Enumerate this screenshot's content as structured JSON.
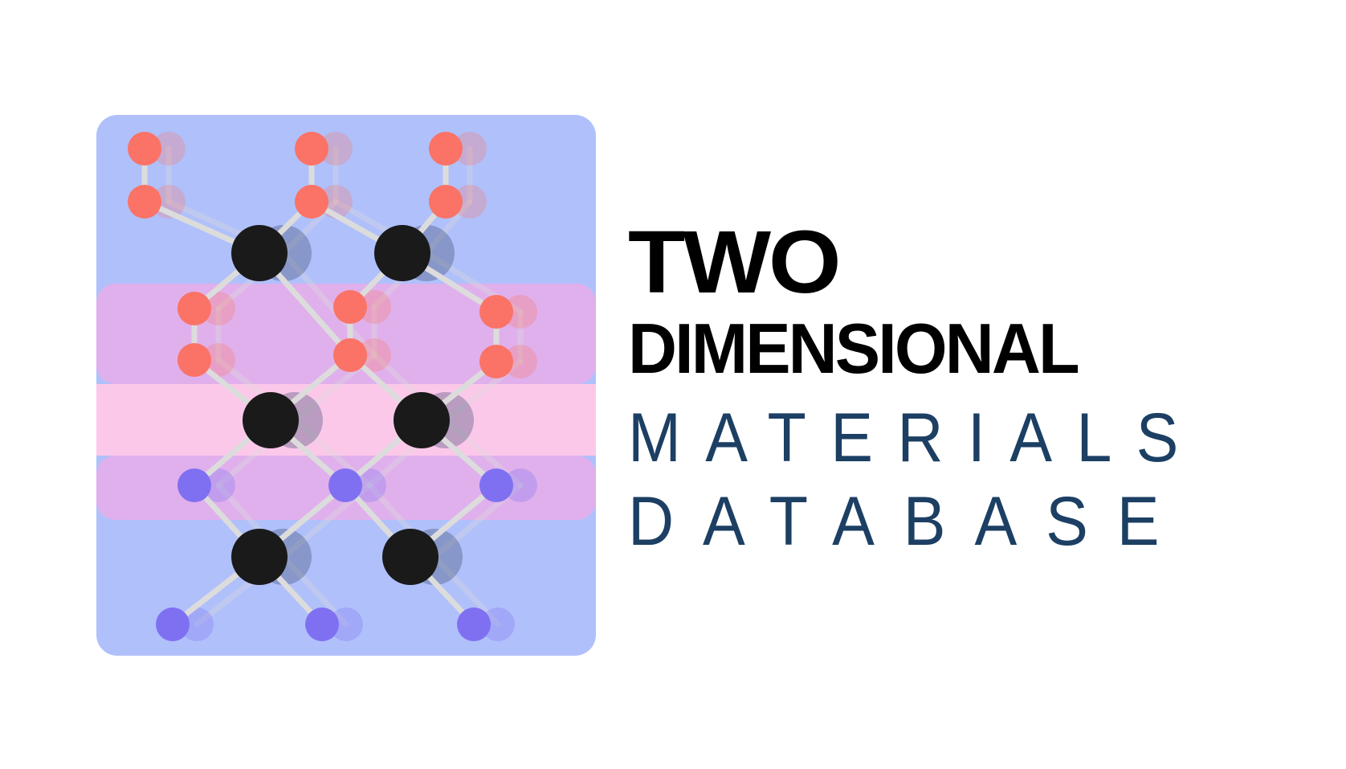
{
  "logo": {
    "name": "2D materials crystal structure emblem",
    "colors": {
      "panel_background": "#b0c0fb",
      "upper_band": "#e0b0ec",
      "middle_band": "#fcc8ea",
      "lower_band": "#e0b0ec",
      "top_atoms": "#fa7366",
      "bottom_atoms": "#7f70f2",
      "metal_atoms": "#1a1a1a",
      "bonds": "#dcdcdc"
    },
    "atom_kinds": [
      "top-atom",
      "metal-atom",
      "bottom-atom"
    ]
  },
  "wordmark": {
    "line1": "TWO",
    "line2": "DIMENSIONAL",
    "line3": "MATERIALS",
    "line4": "DATABASE",
    "bold_color": "#000000",
    "light_color": "#1c3f63"
  }
}
